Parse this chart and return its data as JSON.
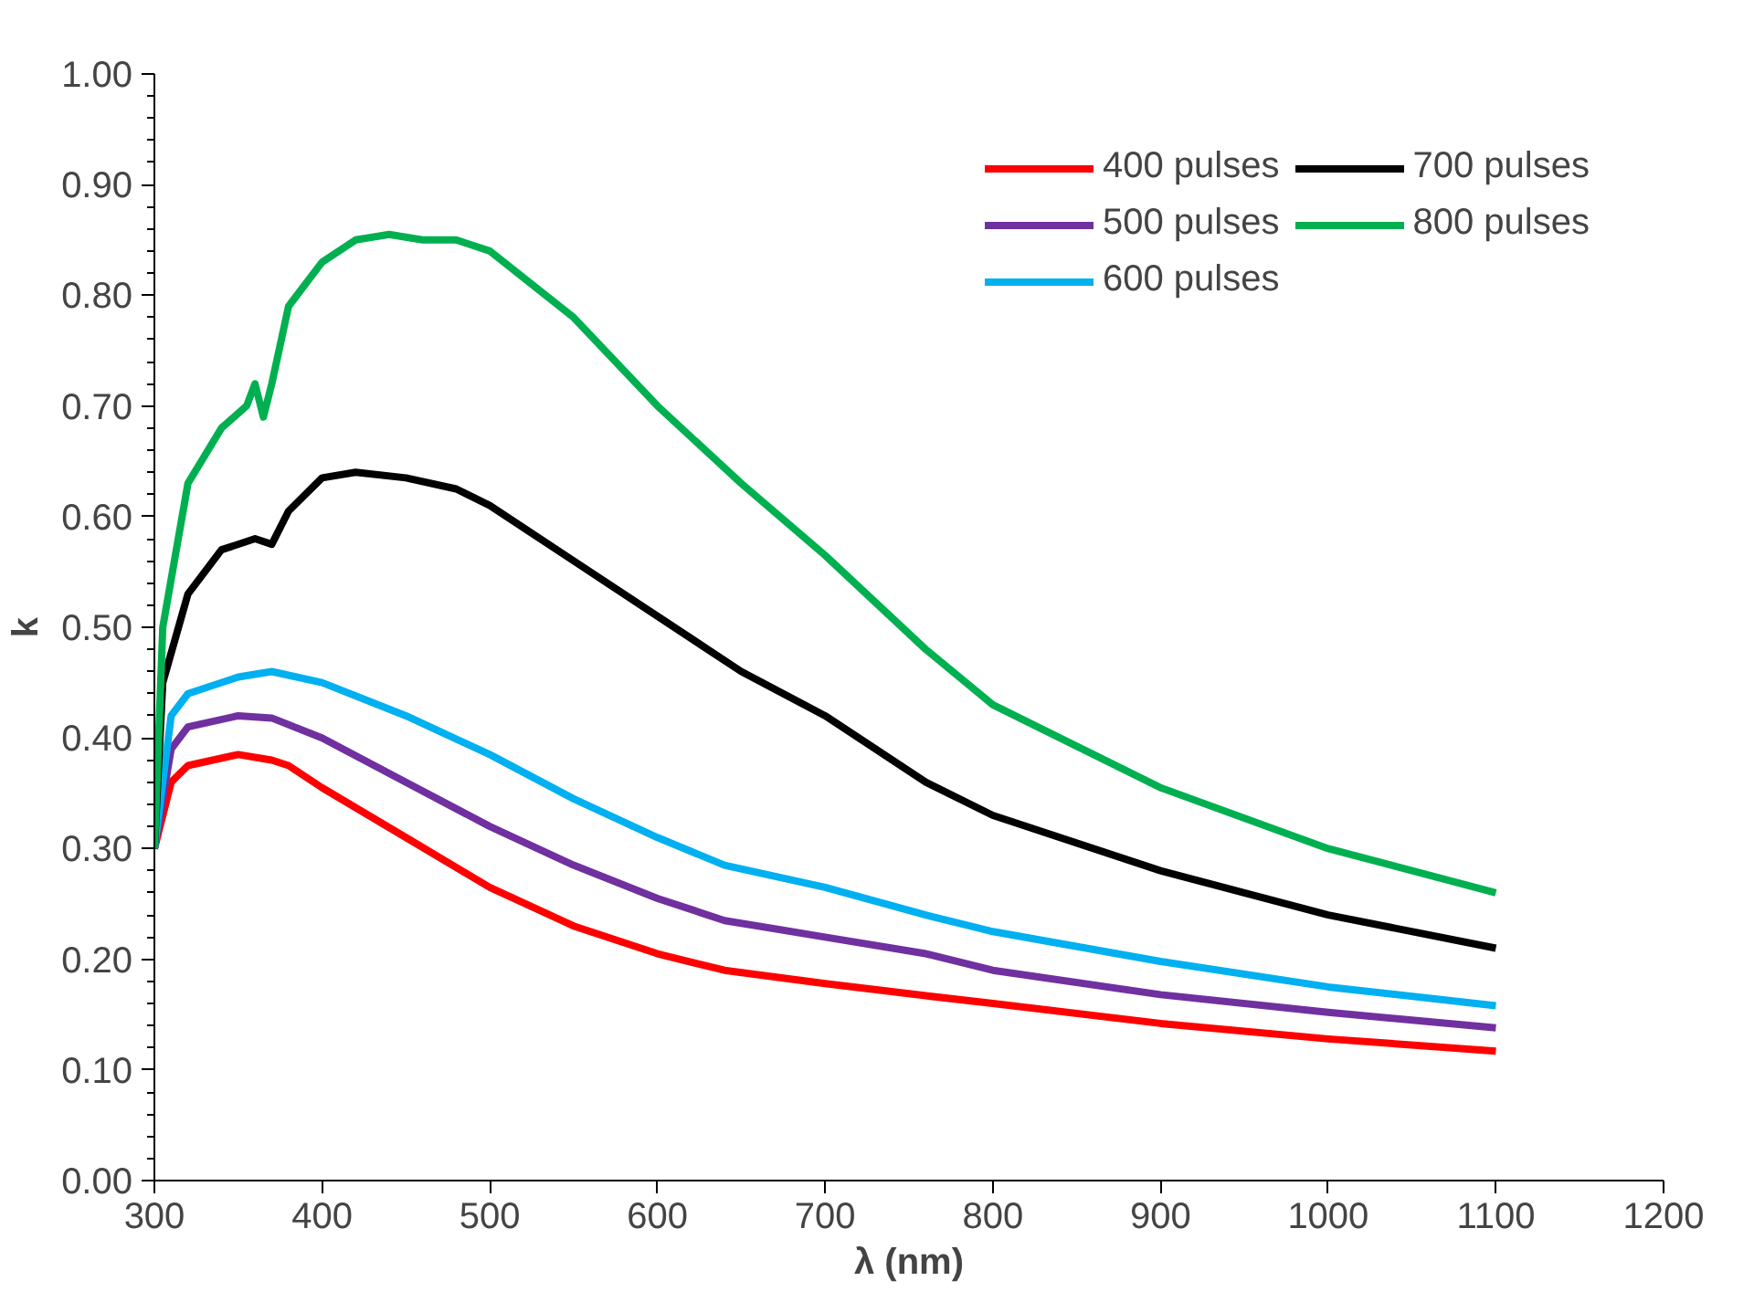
{
  "chart_data": {
    "type": "line",
    "xlabel": "λ (nm)",
    "ylabel": "k",
    "xlim": [
      300,
      1200
    ],
    "ylim": [
      0,
      1
    ],
    "xticks": [
      300,
      400,
      500,
      600,
      700,
      800,
      900,
      1000,
      1100,
      1200
    ],
    "yticks": [
      {
        "value": 0,
        "label": "0.00"
      },
      {
        "value": 0.1,
        "label": "0.10"
      },
      {
        "value": 0.2,
        "label": "0.20"
      },
      {
        "value": 0.3,
        "label": "0.30"
      },
      {
        "value": 0.4,
        "label": "0.40"
      },
      {
        "value": 0.5,
        "label": "0.50"
      },
      {
        "value": 0.6,
        "label": "0.60"
      },
      {
        "value": 0.7,
        "label": "0.70"
      },
      {
        "value": 0.8,
        "label": "0.80"
      },
      {
        "value": 0.9,
        "label": "0.90"
      },
      {
        "value": 1,
        "label": "1.00"
      }
    ],
    "grid": false,
    "legend": "top right",
    "marker": "none",
    "line_style": "solid",
    "series": [
      {
        "name": "400 pulses",
        "color": "#ff0000",
        "x": [
          300,
          310,
          320,
          350,
          370,
          380,
          400,
          450,
          500,
          550,
          600,
          640,
          700,
          760,
          800,
          900,
          1000,
          1100
        ],
        "values": [
          0.3,
          0.36,
          0.375,
          0.385,
          0.38,
          0.375,
          0.355,
          0.31,
          0.265,
          0.23,
          0.205,
          0.19,
          0.178,
          0.167,
          0.16,
          0.142,
          0.128,
          0.117
        ]
      },
      {
        "name": "500 pulses",
        "color": "#7030a0",
        "x": [
          300,
          310,
          320,
          350,
          370,
          400,
          450,
          500,
          550,
          600,
          640,
          700,
          760,
          800,
          900,
          1000,
          1100
        ],
        "values": [
          0.3,
          0.39,
          0.41,
          0.42,
          0.418,
          0.4,
          0.36,
          0.32,
          0.285,
          0.255,
          0.235,
          0.22,
          0.205,
          0.19,
          0.168,
          0.152,
          0.138
        ]
      },
      {
        "name": "600 pulses",
        "color": "#00b0f0",
        "x": [
          300,
          310,
          320,
          350,
          370,
          400,
          450,
          500,
          550,
          600,
          640,
          700,
          760,
          800,
          900,
          1000,
          1100
        ],
        "values": [
          0.3,
          0.42,
          0.44,
          0.455,
          0.46,
          0.45,
          0.42,
          0.385,
          0.345,
          0.31,
          0.285,
          0.265,
          0.24,
          0.225,
          0.198,
          0.175,
          0.158
        ]
      },
      {
        "name": "700 pulses",
        "color": "#000000",
        "x": [
          300,
          305,
          320,
          340,
          360,
          370,
          380,
          400,
          420,
          450,
          480,
          500,
          550,
          600,
          650,
          700,
          760,
          800,
          900,
          1000,
          1100
        ],
        "values": [
          0.3,
          0.45,
          0.53,
          0.57,
          0.58,
          0.575,
          0.605,
          0.635,
          0.64,
          0.635,
          0.625,
          0.61,
          0.56,
          0.51,
          0.46,
          0.42,
          0.36,
          0.33,
          0.28,
          0.24,
          0.21
        ]
      },
      {
        "name": "800 pulses",
        "color": "#00b050",
        "x": [
          300,
          305,
          320,
          340,
          355,
          360,
          365,
          370,
          380,
          400,
          420,
          440,
          460,
          480,
          500,
          550,
          600,
          650,
          700,
          760,
          800,
          900,
          1000,
          1100
        ],
        "values": [
          0.3,
          0.5,
          0.63,
          0.68,
          0.7,
          0.72,
          0.69,
          0.72,
          0.79,
          0.83,
          0.85,
          0.855,
          0.85,
          0.85,
          0.84,
          0.78,
          0.7,
          0.63,
          0.565,
          0.48,
          0.43,
          0.355,
          0.3,
          0.26
        ]
      }
    ]
  }
}
